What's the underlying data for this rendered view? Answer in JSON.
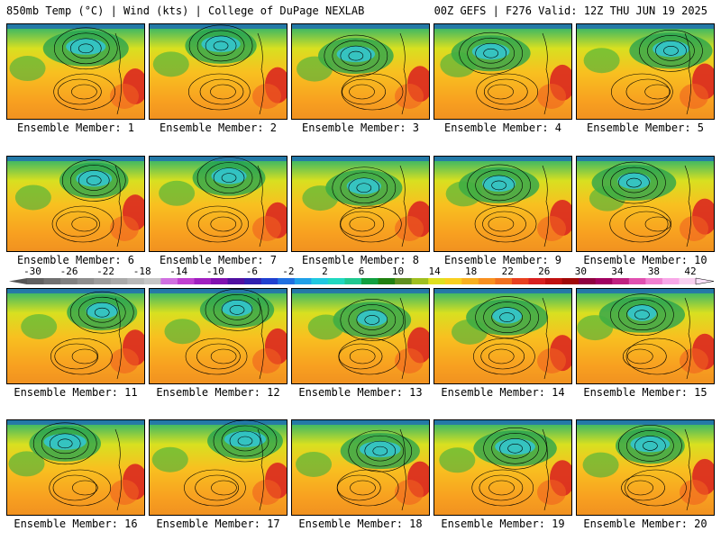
{
  "header": {
    "left": "850mb Temp (°C) | Wind (kts) | College of DuPage NEXLAB",
    "right": "00Z GEFS | F276 Valid: 12Z THU JUN 19 2025"
  },
  "caption_prefix": "Ensemble Member:",
  "members": [
    "1",
    "2",
    "3",
    "4",
    "5",
    "6",
    "7",
    "8",
    "9",
    "10",
    "11",
    "12",
    "13",
    "14",
    "15",
    "16",
    "17",
    "18",
    "19",
    "20"
  ],
  "colorbar": {
    "labels": [
      "-30",
      "-26",
      "-22",
      "-18",
      "-14",
      "-10",
      "-6",
      "-2",
      "2",
      "6",
      "10",
      "14",
      "18",
      "22",
      "26",
      "30",
      "34",
      "38",
      "42"
    ],
    "colors": [
      "#606060",
      "#707070",
      "#808080",
      "#8e8e8e",
      "#9c9c9c",
      "#aaaaaa",
      "#b8b8b8",
      "#c6c6c6",
      "#d070e0",
      "#c040d0",
      "#a020c0",
      "#8010b0",
      "#5010a0",
      "#3020b0",
      "#2040d0",
      "#2070e0",
      "#20a0e8",
      "#20c8e0",
      "#20d8c0",
      "#20c890",
      "#10a040",
      "#208010",
      "#609020",
      "#a0c020",
      "#e0e020",
      "#f8d020",
      "#f8b020",
      "#f89020",
      "#f07020",
      "#e84020",
      "#d82020",
      "#c01010",
      "#a00808",
      "#900040",
      "#a00060",
      "#c02080",
      "#e050b0",
      "#f080d0",
      "#f8a8e8",
      "#f8d0f0"
    ]
  }
}
